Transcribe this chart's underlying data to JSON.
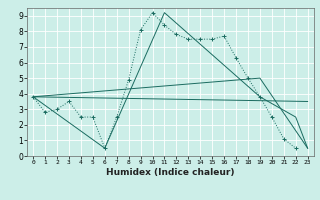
{
  "title": "",
  "xlabel": "Humidex (Indice chaleur)",
  "bg_color": "#cceee8",
  "grid_color": "#ffffff",
  "line_color": "#1a6b60",
  "xlim": [
    -0.5,
    23.5
  ],
  "ylim": [
    0,
    9.5
  ],
  "xticks": [
    0,
    1,
    2,
    3,
    4,
    5,
    6,
    7,
    8,
    9,
    10,
    11,
    12,
    13,
    14,
    15,
    16,
    17,
    18,
    19,
    20,
    21,
    22,
    23
  ],
  "yticks": [
    0,
    1,
    2,
    3,
    4,
    5,
    6,
    7,
    8,
    9
  ],
  "line1_x": [
    0,
    1,
    2,
    3,
    4,
    5,
    6,
    7,
    8,
    9,
    10,
    11,
    12,
    13,
    14,
    15,
    16,
    17,
    18,
    19,
    20,
    21,
    22
  ],
  "line1_y": [
    3.8,
    2.8,
    3.0,
    3.5,
    2.5,
    2.5,
    0.5,
    2.5,
    4.9,
    8.1,
    9.2,
    8.4,
    7.8,
    7.5,
    7.5,
    7.5,
    7.7,
    6.3,
    5.0,
    3.8,
    2.5,
    1.1,
    0.5
  ],
  "line2_x": [
    0,
    6,
    11,
    19,
    22,
    23
  ],
  "line2_y": [
    3.8,
    0.5,
    9.2,
    3.8,
    2.5,
    0.5
  ],
  "line3_x": [
    0,
    23
  ],
  "line3_y": [
    3.8,
    3.5
  ],
  "line4_x": [
    0,
    19,
    23
  ],
  "line4_y": [
    3.8,
    5.0,
    0.5
  ]
}
